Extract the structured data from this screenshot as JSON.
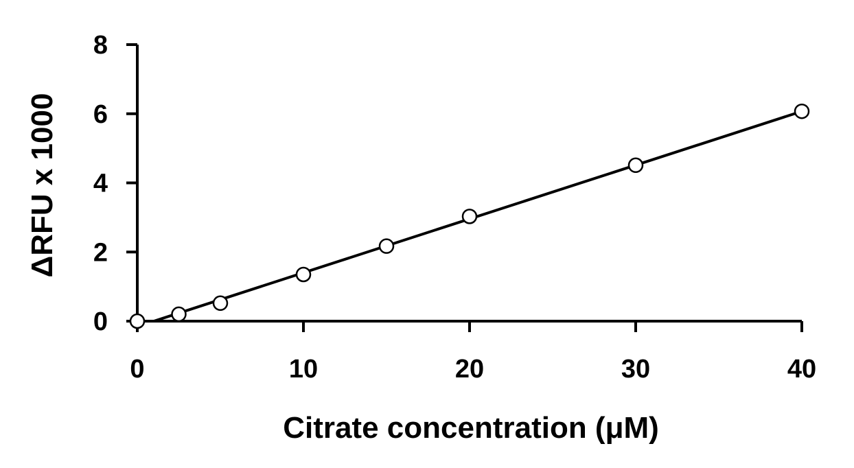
{
  "chart_data": {
    "type": "scatter",
    "title": "",
    "xlabel": "Citrate concentration (μM)",
    "ylabel": "ΔRFU x 1000",
    "xlim": [
      0,
      40
    ],
    "ylim": [
      0,
      8
    ],
    "xticks": [
      0,
      10,
      20,
      30,
      40
    ],
    "yticks": [
      0,
      2,
      4,
      6,
      8
    ],
    "grid": false,
    "legend": "none",
    "series": [
      {
        "marker": "open-circle",
        "x": [
          0,
          2.5,
          5,
          10,
          15,
          20,
          30,
          40
        ],
        "y": [
          0,
          0.2,
          0.52,
          1.35,
          2.17,
          3.03,
          4.51,
          6.07
        ]
      }
    ],
    "trendline": {
      "type": "linear",
      "x": [
        1,
        40
      ],
      "y": [
        0,
        6.07
      ]
    },
    "colors": {
      "axis": "#000000",
      "marker_stroke": "#000000",
      "marker_fill": "#ffffff",
      "line": "#000000"
    }
  }
}
